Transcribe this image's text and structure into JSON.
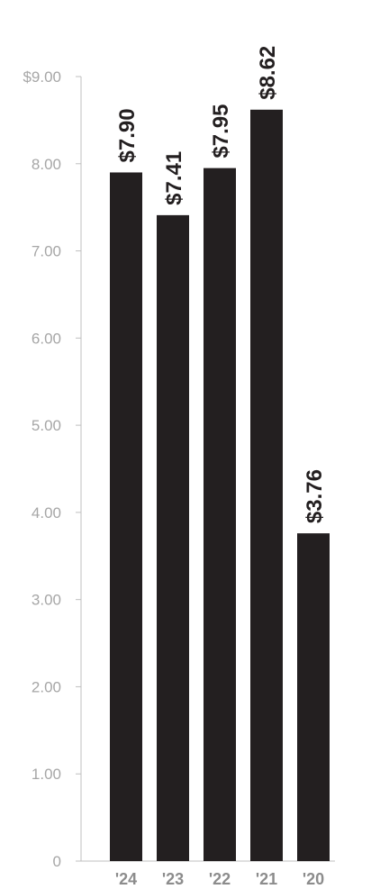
{
  "chart_data": {
    "type": "bar",
    "title": "",
    "xlabel": "",
    "ylabel": "",
    "categories": [
      "'24",
      "'23",
      "'22",
      "'21",
      "'20"
    ],
    "values": [
      7.9,
      7.41,
      7.95,
      8.62,
      3.76
    ],
    "value_labels": [
      "$7.90",
      "$7.41",
      "$7.95",
      "$8.62",
      "$3.76"
    ],
    "ylim": [
      0,
      9
    ],
    "y_ticks": [
      0,
      1,
      2,
      3,
      4,
      5,
      6,
      7,
      8,
      9
    ],
    "y_tick_labels": [
      "0",
      "1.00",
      "2.00",
      "3.00",
      "4.00",
      "5.00",
      "6.00",
      "7.00",
      "8.00",
      "$9.00"
    ],
    "grid": false,
    "legend": "none",
    "colors": {
      "bar": "#231f20",
      "axis": "#bfbfbf",
      "tick_text": "#a6a6a6",
      "category_text": "#8c8c8c",
      "value_text": "#231f20"
    }
  }
}
